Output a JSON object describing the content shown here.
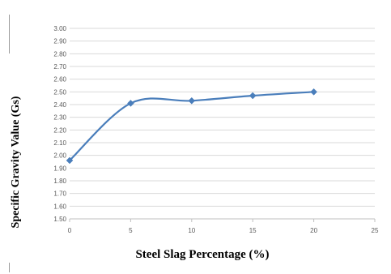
{
  "chart_data": {
    "type": "line",
    "title": "",
    "xlabel": "Steel Slag Percentage (%)",
    "ylabel": "Specific Gravity Value (Gs)",
    "xlim": [
      0,
      25
    ],
    "ylim": [
      1.5,
      3.0
    ],
    "x_ticks": [
      "0",
      "5",
      "10",
      "15",
      "20",
      "25"
    ],
    "y_ticks": [
      "1.50",
      "1.60",
      "1.70",
      "1.80",
      "1.90",
      "2.00",
      "2.10",
      "2.20",
      "2.30",
      "2.40",
      "2.50",
      "2.60",
      "2.70",
      "2.80",
      "2.90",
      "3.00"
    ],
    "grid": "horizontal",
    "smoothed": true,
    "marker": "diamond",
    "series": [
      {
        "x": [
          0,
          5,
          10,
          15,
          20
        ],
        "values": [
          1.96,
          2.41,
          2.43,
          2.47,
          2.5
        ]
      }
    ],
    "colors": {
      "series": "#4a7ebb",
      "grid": "#d9d9d9",
      "axis": "#bfbfbf",
      "tick_text": "#595959"
    }
  }
}
